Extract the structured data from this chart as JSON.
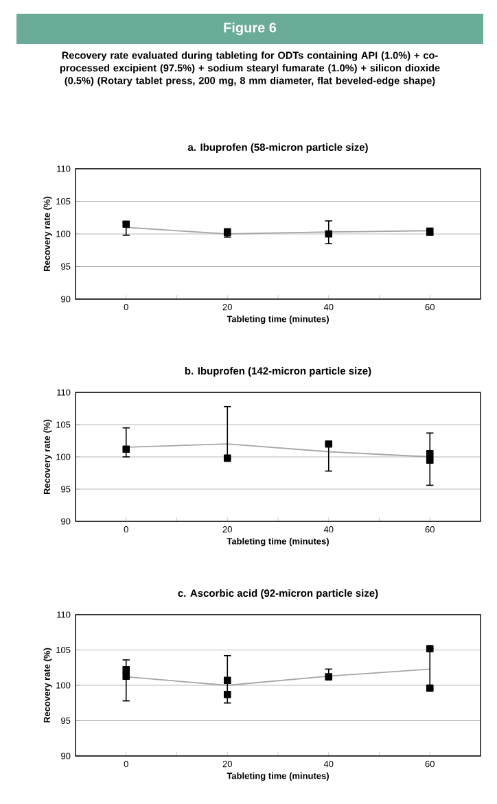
{
  "chart_data": [
    {
      "type": "other",
      "title": "Figure 6",
      "subtitle": "Recovery rate evaluated during tableting for ODTs containing API (1.0%) + co-processed excipient (97.5%) + sodium stearyl fumarate (1.0%) + silicon dioxide (0.5%) (Rotary tablet press, 200 mg, 8 mm diameter, flat beveled-edge shape)"
    },
    {
      "type": "line",
      "title": "a. Ibuprofen (58-micron particle size)",
      "xlabel": "Tableting time (minutes)",
      "ylabel": "Recovery rate (%)",
      "xlim": [
        -10,
        70
      ],
      "ylim": [
        90,
        110
      ],
      "xticks": [
        0,
        {
          "value": 10,
          "label": null
        },
        20,
        {
          "value": 30,
          "label": null
        },
        40,
        {
          "value": 50,
          "label": null
        },
        60
      ],
      "yticks": [
        90,
        95,
        100,
        105,
        110
      ],
      "grid": "y",
      "x": [
        0,
        20,
        40,
        60
      ],
      "series": [
        {
          "type": "line",
          "color": "#a6a6a6",
          "marker": "none",
          "values": [
            101,
            100,
            100.3,
            100.5
          ],
          "errors": [
            [
              99.8,
              101.8
            ],
            [
              99.5,
              100.8
            ],
            [
              98.5,
              102
            ],
            [
              99.8,
              100.9
            ]
          ]
        },
        {
          "type": "scatter",
          "color": "#000000",
          "marker": "square",
          "x": [
            0,
            20,
            40,
            60
          ],
          "values": [
            101.5,
            100.2,
            100,
            100.3
          ]
        }
      ]
    },
    {
      "type": "line",
      "title": "b. Ibuprofen (142-micron particle size)",
      "xlabel": "Tableting time (minutes)",
      "ylabel": "Recovery rate (%)",
      "xlim": [
        -10,
        70
      ],
      "ylim": [
        90,
        110
      ],
      "xticks": [
        0,
        {
          "value": 10,
          "label": null
        },
        20,
        {
          "value": 30,
          "label": null
        },
        40,
        {
          "value": 50,
          "label": null
        },
        60
      ],
      "yticks": [
        90,
        95,
        100,
        105,
        110
      ],
      "grid": "y",
      "x": [
        0,
        20,
        40,
        60
      ],
      "series": [
        {
          "type": "line",
          "color": "#a6a6a6",
          "marker": "none",
          "values": [
            101.5,
            102,
            100.8,
            100
          ],
          "errors": [
            [
              100,
              104.5
            ],
            [
              99.8,
              107.8
            ],
            [
              97.8,
              102
            ],
            [
              95.6,
              103.7
            ]
          ]
        },
        {
          "type": "scatter",
          "color": "#000000",
          "marker": "square",
          "x": [
            0,
            20,
            40,
            60,
            60
          ],
          "values": [
            101.2,
            99.8,
            102,
            100.5,
            99.5
          ]
        }
      ]
    },
    {
      "type": "line",
      "title": "c. Ascorbic acid (92-micron particle size)",
      "xlabel": "Tableting time (minutes)",
      "ylabel": "Recovery rate (%)",
      "xlim": [
        -10,
        70
      ],
      "ylim": [
        90,
        110
      ],
      "xticks": [
        0,
        {
          "value": 10,
          "label": null
        },
        20,
        {
          "value": 30,
          "label": null
        },
        40,
        {
          "value": 50,
          "label": null
        },
        60
      ],
      "yticks": [
        90,
        95,
        100,
        105,
        110
      ],
      "grid": "y",
      "x": [
        0,
        20,
        40,
        60
      ],
      "series": [
        {
          "type": "line",
          "color": "#a6a6a6",
          "marker": "none",
          "values": [
            101.2,
            100,
            101.3,
            102.3
          ],
          "errors": [
            [
              97.8,
              103.6
            ],
            [
              97.5,
              104.2
            ],
            [
              101,
              102.3
            ],
            [
              99.5,
              105.2
            ]
          ]
        },
        {
          "type": "scatter",
          "color": "#000000",
          "marker": "square",
          "x": [
            0,
            0,
            20,
            20,
            40,
            60,
            60
          ],
          "values": [
            102.2,
            101.3,
            100.7,
            98.7,
            101.2,
            105.2,
            99.6
          ]
        }
      ]
    }
  ]
}
